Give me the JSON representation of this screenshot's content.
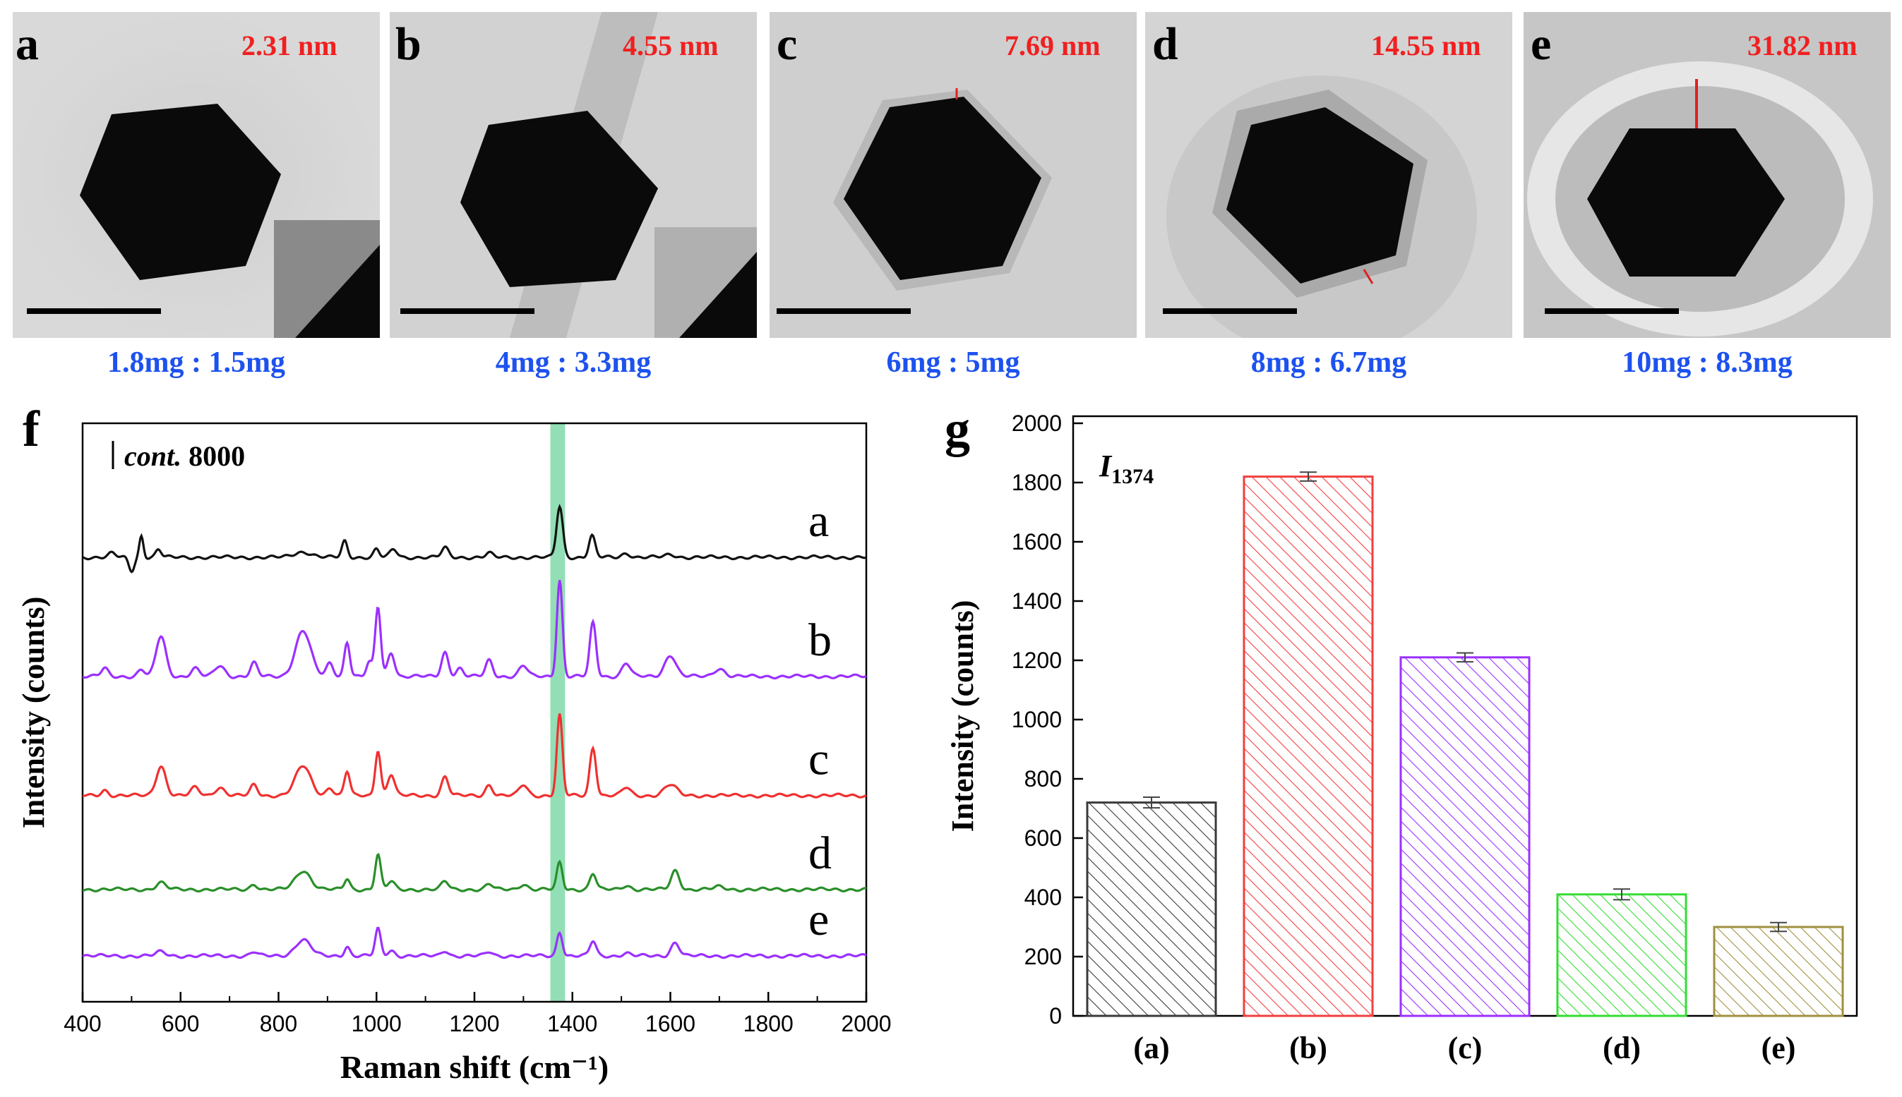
{
  "panels_tem": [
    {
      "label": "a",
      "size": "2.31 nm",
      "ratio": "1.8mg : 1.5mg"
    },
    {
      "label": "b",
      "size": "4.55 nm",
      "ratio": "4mg : 3.3mg"
    },
    {
      "label": "c",
      "size": "7.69 nm",
      "ratio": "6mg : 5mg"
    },
    {
      "label": "d",
      "size": "14.55 nm",
      "ratio": "8mg : 6.7mg"
    },
    {
      "label": "e",
      "size": "31.82 nm",
      "ratio": "10mg : 8.3mg"
    }
  ],
  "chart_data": [
    {
      "panel": "f",
      "type": "line",
      "xlabel": "Raman shift (cm⁻¹)",
      "ylabel": "Intensity (counts)",
      "xlim": [
        400,
        2000
      ],
      "xticks": [
        400,
        600,
        800,
        1000,
        1200,
        1400,
        1600,
        1800,
        2000
      ],
      "scale_bar": "cont. 8000",
      "highlight_band": [
        1355,
        1385
      ],
      "highlight_color": "#80d9a8",
      "series": [
        {
          "name": "a",
          "color": "#111111",
          "baseline": 0.13,
          "peaks": [
            [
              460,
              0.15,
              10
            ],
            [
              500,
              -0.5,
              8
            ],
            [
              520,
              0.8,
              6
            ],
            [
              555,
              0.3,
              8
            ],
            [
              850,
              0.2,
              25
            ],
            [
              935,
              0.6,
              8
            ],
            [
              1000,
              0.3,
              8
            ],
            [
              1035,
              0.3,
              10
            ],
            [
              1140,
              0.35,
              10
            ],
            [
              1230,
              0.15,
              10
            ],
            [
              1374,
              1.9,
              9
            ],
            [
              1440,
              0.8,
              9
            ],
            [
              1510,
              0.15,
              12
            ],
            [
              1600,
              0.1,
              15
            ]
          ]
        },
        {
          "name": "b",
          "color": "#9b30ff",
          "baseline": 0.39,
          "peaks": [
            [
              445,
              0.3,
              10
            ],
            [
              520,
              0.25,
              10
            ],
            [
              560,
              1.5,
              14
            ],
            [
              630,
              0.3,
              12
            ],
            [
              680,
              0.4,
              14
            ],
            [
              750,
              0.5,
              10
            ],
            [
              850,
              1.7,
              22
            ],
            [
              905,
              0.5,
              10
            ],
            [
              940,
              1.3,
              8
            ],
            [
              985,
              0.5,
              8
            ],
            [
              1003,
              2.6,
              8
            ],
            [
              1030,
              0.9,
              10
            ],
            [
              1140,
              0.9,
              10
            ],
            [
              1170,
              0.3,
              10
            ],
            [
              1230,
              0.6,
              10
            ],
            [
              1300,
              0.4,
              12
            ],
            [
              1374,
              3.6,
              8
            ],
            [
              1442,
              2.0,
              9
            ],
            [
              1510,
              0.5,
              12
            ],
            [
              1600,
              0.8,
              16
            ],
            [
              1700,
              0.3,
              15
            ]
          ]
        },
        {
          "name": "c",
          "color": "#f03030",
          "baseline": 0.65,
          "peaks": [
            [
              445,
              0.2,
              10
            ],
            [
              560,
              1.1,
              14
            ],
            [
              630,
              0.3,
              12
            ],
            [
              680,
              0.3,
              14
            ],
            [
              750,
              0.4,
              10
            ],
            [
              850,
              1.1,
              22
            ],
            [
              905,
              0.3,
              10
            ],
            [
              940,
              0.9,
              8
            ],
            [
              1003,
              1.7,
              8
            ],
            [
              1030,
              0.8,
              10
            ],
            [
              1140,
              0.7,
              10
            ],
            [
              1230,
              0.4,
              10
            ],
            [
              1300,
              0.4,
              12
            ],
            [
              1374,
              3.0,
              8
            ],
            [
              1442,
              1.8,
              9
            ],
            [
              1510,
              0.3,
              12
            ],
            [
              1600,
              0.4,
              18
            ]
          ]
        },
        {
          "name": "d",
          "color": "#2a8f2a",
          "baseline": 0.855,
          "peaks": [
            [
              560,
              0.25,
              14
            ],
            [
              750,
              0.2,
              10
            ],
            [
              850,
              0.7,
              22
            ],
            [
              940,
              0.4,
              8
            ],
            [
              1003,
              1.3,
              8
            ],
            [
              1030,
              0.3,
              10
            ],
            [
              1140,
              0.3,
              10
            ],
            [
              1230,
              0.2,
              10
            ],
            [
              1300,
              0.2,
              12
            ],
            [
              1374,
              1.0,
              8
            ],
            [
              1442,
              0.6,
              9
            ],
            [
              1510,
              0.15,
              12
            ],
            [
              1610,
              0.7,
              12
            ],
            [
              1700,
              0.1,
              15
            ]
          ]
        },
        {
          "name": "e",
          "color": "#9b30ff",
          "baseline": 1.0,
          "peaks": [
            [
              560,
              0.15,
              14
            ],
            [
              750,
              0.15,
              10
            ],
            [
              850,
              0.6,
              22
            ],
            [
              940,
              0.35,
              8
            ],
            [
              1003,
              1.0,
              8
            ],
            [
              1030,
              0.2,
              10
            ],
            [
              1140,
              0.2,
              10
            ],
            [
              1230,
              0.15,
              10
            ],
            [
              1374,
              0.9,
              8
            ],
            [
              1442,
              0.55,
              9
            ],
            [
              1510,
              0.1,
              12
            ],
            [
              1610,
              0.5,
              12
            ]
          ]
        }
      ]
    },
    {
      "panel": "g",
      "type": "bar",
      "title": "I1374",
      "title_main": "I",
      "title_sub": "1374",
      "ylabel": "Intensity (counts)",
      "ylim": [
        0,
        2000
      ],
      "yticks": [
        0,
        200,
        400,
        600,
        800,
        1000,
        1200,
        1400,
        1600,
        1800,
        2000
      ],
      "categories": [
        "(a)",
        "(b)",
        "(c)",
        "(d)",
        "(e)"
      ],
      "values": [
        720,
        1820,
        1210,
        410,
        300
      ],
      "errors": [
        18,
        15,
        15,
        18,
        15
      ],
      "colors": [
        "#3a3a3a",
        "#f04040",
        "#9b30ff",
        "#33dd33",
        "#a09040"
      ]
    }
  ]
}
